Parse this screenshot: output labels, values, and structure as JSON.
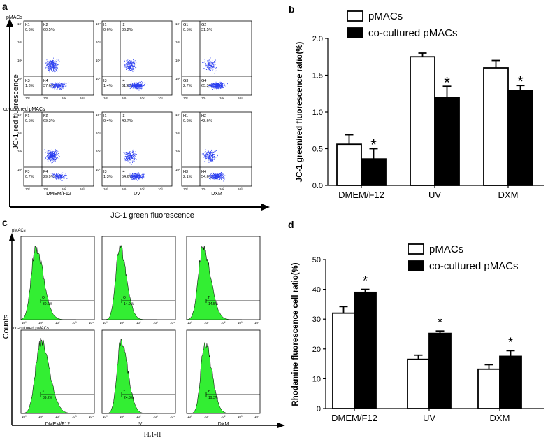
{
  "panels": {
    "a": {
      "letter": "a",
      "row1_label": "pMACs",
      "row2_label": "co-cultured pMACs",
      "ylabel": "JC-1 red fluorescence",
      "xlabel": "JC-1 green fluorescence",
      "col_labels": [
        "DMEM/F12",
        "UV",
        "DXM"
      ],
      "plots": [
        {
          "q": [
            "K1",
            "K2",
            "K3",
            "K4"
          ],
          "v": [
            "0.6%",
            "60.5%",
            "1.3%",
            "37.6%"
          ]
        },
        {
          "q": [
            "I1",
            "I2",
            "I3",
            "I4"
          ],
          "v": [
            "0.6%",
            "36.2%",
            "1.4%",
            "61.6%"
          ]
        },
        {
          "q": [
            "G1",
            "G2",
            "G3",
            "G4"
          ],
          "v": [
            "0.5%",
            "31.5%",
            "2.7%",
            "65.3%"
          ]
        },
        {
          "q": [
            "F1",
            "F2",
            "F3",
            "F4"
          ],
          "v": [
            "0.5%",
            "69.3%",
            "0.7%",
            "29.9%"
          ]
        },
        {
          "q": [
            "I1",
            "I2",
            "I3",
            "I4"
          ],
          "v": [
            "0.4%",
            "43.7%",
            "1.3%",
            "54.6%"
          ]
        },
        {
          "q": [
            "H1",
            "H2",
            "H3",
            "H4"
          ],
          "v": [
            "0.6%",
            "42.6%",
            "2.1%",
            "54.6%"
          ]
        }
      ],
      "tick_exp": [
        "10⁰",
        "10¹",
        "10²",
        "10³",
        "10⁴"
      ]
    },
    "c": {
      "letter": "c",
      "row1_label": "pMACs",
      "row2_label": "co-cultured pMACs",
      "ylabel": "Counts",
      "xlabel": "FL1-H",
      "col_labels": [
        "DMEM/F12",
        "UV",
        "DXM"
      ],
      "plots": [
        {
          "g": "O",
          "v": "30.6%"
        },
        {
          "g": "O",
          "v": "14.9%"
        },
        {
          "g": "T",
          "v": "14.5%"
        },
        {
          "g": "X",
          "v": "39.2%"
        },
        {
          "g": "Y",
          "v": "24.3%"
        },
        {
          "g": "Y",
          "v": "19.3%"
        }
      ],
      "tick_exp": [
        "10⁰",
        "10¹",
        "10²",
        "10³",
        "10⁴"
      ]
    }
  },
  "colors": {
    "dots": "#2a3df0",
    "hist": "#33ee33",
    "bar_ctrl": "#ffffff",
    "bar_cc": "#000000"
  },
  "chart_data": [
    {
      "letter": "b",
      "type": "bar",
      "categories": [
        "DMEM/F12",
        "UV",
        "DXM"
      ],
      "series": [
        {
          "name": "pMACs",
          "values": [
            0.56,
            1.75,
            1.6
          ],
          "errors": [
            0.13,
            0.05,
            0.1
          ]
        },
        {
          "name": "co-cultured pMACs",
          "values": [
            0.36,
            1.2,
            1.29
          ],
          "errors": [
            0.14,
            0.15,
            0.07
          ]
        }
      ],
      "significance": [
        "*",
        "*",
        "*"
      ],
      "title": "",
      "xlabel": "",
      "ylabel": "JC-1 green/red fluorescence ratio(%)",
      "ylim": [
        0,
        2.0
      ],
      "yticks": [
        "0.0",
        "0.5",
        "1.0",
        "1.5",
        "2.0"
      ],
      "ytick_values": [
        0,
        0.5,
        1.0,
        1.5,
        2.0
      ],
      "legend": "top-left"
    },
    {
      "letter": "d",
      "type": "bar",
      "categories": [
        "DMEM/F12",
        "UV",
        "DXM"
      ],
      "series": [
        {
          "name": "pMACs",
          "values": [
            32,
            16.5,
            13.2
          ],
          "errors": [
            2.2,
            1.4,
            1.5
          ]
        },
        {
          "name": "co-cultured pMACs",
          "values": [
            39,
            25.2,
            17.5
          ],
          "errors": [
            1.0,
            0.8,
            1.9
          ]
        }
      ],
      "significance": [
        "*",
        "*",
        "*"
      ],
      "title": "",
      "xlabel": "",
      "ylabel": "Rhodamine fluorescence cell ratio(%)",
      "ylim": [
        0,
        50
      ],
      "yticks": [
        "0",
        "10",
        "20",
        "30",
        "40",
        "50"
      ],
      "ytick_values": [
        0,
        10,
        20,
        30,
        40,
        50
      ],
      "legend": "top-center"
    }
  ]
}
